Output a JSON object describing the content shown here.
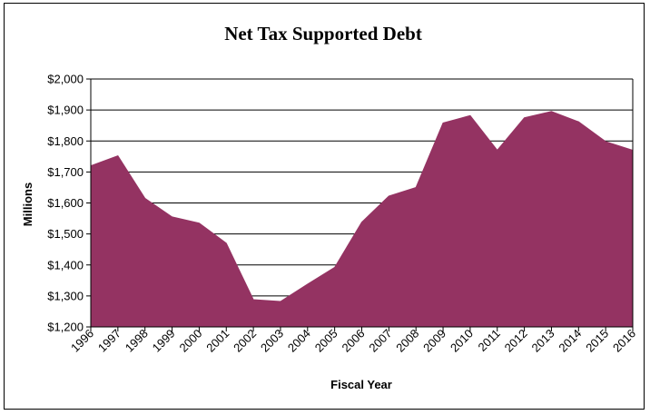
{
  "chart_data": {
    "type": "area",
    "title": "Net Tax Supported Debt",
    "xlabel": "Fiscal Year",
    "ylabel": "Millions",
    "ylim": [
      1200,
      2000
    ],
    "y_ticks": [
      1200,
      1300,
      1400,
      1500,
      1600,
      1700,
      1800,
      1900,
      2000
    ],
    "y_tick_labels": [
      "$1,200",
      "$1,300",
      "$1,400",
      "$1,500",
      "$1,600",
      "$1,700",
      "$1,800",
      "$1,900",
      "$2,000"
    ],
    "categories": [
      "1996",
      "1997",
      "1998",
      "1999",
      "2000",
      "2001",
      "2002",
      "2003",
      "2004",
      "2005",
      "2006",
      "2007",
      "2008",
      "2009",
      "2010",
      "2011",
      "2012",
      "2013",
      "2014",
      "2015",
      "2016"
    ],
    "values": [
      1720,
      1752,
      1615,
      1555,
      1535,
      1470,
      1288,
      1282,
      1338,
      1392,
      1538,
      1622,
      1650,
      1858,
      1882,
      1770,
      1875,
      1895,
      1862,
      1798,
      1770
    ],
    "grid": true,
    "legend": "none",
    "fill_color": "#943362",
    "line_color": "#000000"
  }
}
